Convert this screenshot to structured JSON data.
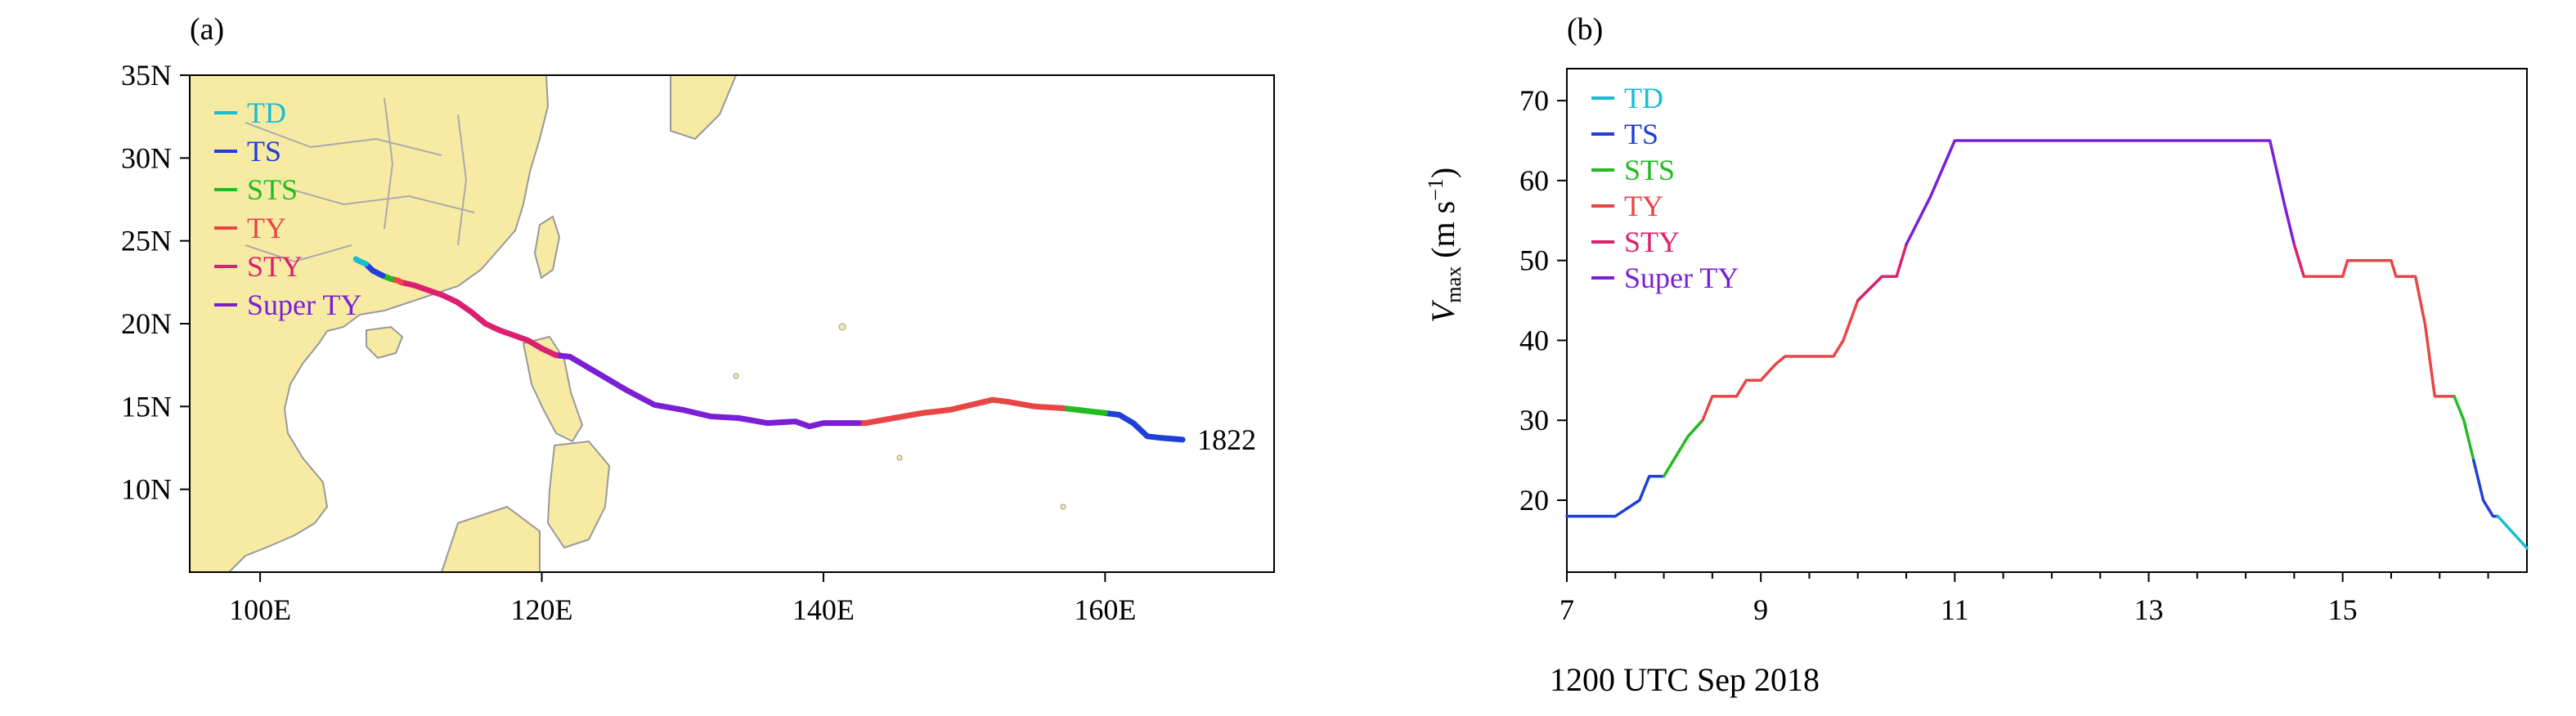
{
  "colors": {
    "TD": "#17becf",
    "TS": "#1f3fd6",
    "STS": "#22bb22",
    "TY": "#e84545",
    "STY": "#dc1f6e",
    "SuperTY": "#7a1fd6",
    "land": "#f7eba4",
    "coast": "#999999"
  },
  "chart_data": [
    {
      "type": "line",
      "panel_label": "(a)",
      "xlim": [
        95,
        172
      ],
      "ylim": [
        5,
        35
      ],
      "xticks": [
        100,
        120,
        140,
        160
      ],
      "xtick_labels": [
        "100E",
        "120E",
        "140E",
        "160E"
      ],
      "yticks": [
        10,
        15,
        20,
        25,
        30,
        35
      ],
      "ytick_labels": [
        "10N",
        "15N",
        "20N",
        "25N",
        "30N",
        "35N"
      ],
      "legend": [
        "TD",
        "TS",
        "STS",
        "TY",
        "STY",
        "Super TY"
      ],
      "legend_position": "top-left",
      "annotation": "1822",
      "series": [
        {
          "name": "TS",
          "x": [
            165.5,
            164.0,
            163.0,
            162.0,
            161.0,
            160.0
          ],
          "y": [
            13.0,
            13.1,
            13.2,
            14.0,
            14.5,
            14.6
          ]
        },
        {
          "name": "STS",
          "x": [
            160.0,
            159.0,
            158.0,
            157.0
          ],
          "y": [
            14.6,
            14.7,
            14.8,
            14.9
          ]
        },
        {
          "name": "TY",
          "x": [
            157.0,
            155.0,
            153.0,
            152.0,
            151.0,
            150.0,
            149.0,
            147.0,
            145.0,
            143.0,
            142.5
          ],
          "y": [
            14.9,
            15.0,
            15.3,
            15.4,
            15.2,
            15.0,
            14.8,
            14.6,
            14.3,
            14.0,
            14.0
          ]
        },
        {
          "name": "Super TY",
          "x": [
            142.5,
            140.0,
            139.0,
            138.0,
            136.0,
            134.0,
            132.0,
            130.0,
            128.0,
            126.0,
            124.0,
            122.0,
            121.0
          ],
          "y": [
            14.0,
            14.0,
            13.8,
            14.1,
            14.0,
            14.3,
            14.4,
            14.8,
            15.1,
            16.0,
            17.0,
            18.0,
            18.1
          ]
        },
        {
          "name": "STY",
          "x": [
            121.0,
            120.0,
            119.0,
            118.0,
            117.0,
            116.0,
            115.0,
            114.0,
            113.0,
            112.0,
            111.0,
            110.0
          ],
          "y": [
            18.1,
            18.5,
            19.0,
            19.3,
            19.6,
            20.0,
            20.7,
            21.3,
            21.7,
            22.0,
            22.3,
            22.5
          ]
        },
        {
          "name": "TY",
          "x": [
            110.0,
            109.8,
            109.3
          ],
          "y": [
            22.5,
            22.6,
            22.7
          ]
        },
        {
          "name": "STS",
          "x": [
            109.3,
            109.0,
            108.7
          ],
          "y": [
            22.7,
            22.8,
            22.9
          ]
        },
        {
          "name": "TS",
          "x": [
            108.7,
            108.0,
            107.5
          ],
          "y": [
            22.9,
            23.2,
            23.6
          ]
        },
        {
          "name": "TD",
          "x": [
            107.5,
            107.0,
            106.8
          ],
          "y": [
            23.6,
            23.8,
            23.9
          ]
        }
      ]
    },
    {
      "type": "line",
      "panel_label": "(b)",
      "xlabel": "1200 UTC Sep 2018",
      "ylabel_main": "V",
      "ylabel_sub": "max",
      "ylabel_units": "(m s",
      "ylabel_exp": "−1",
      "ylabel_close": ")",
      "xlim": [
        7,
        16.9
      ],
      "ylim": [
        11,
        74
      ],
      "xticks": [
        7,
        9,
        11,
        13,
        15
      ],
      "xtick_labels": [
        "7",
        "9",
        "11",
        "13",
        "15"
      ],
      "xminor_step": 0.5,
      "yticks": [
        20,
        30,
        40,
        50,
        60,
        70
      ],
      "ytick_labels": [
        "20",
        "30",
        "40",
        "50",
        "60",
        "70"
      ],
      "legend": [
        "TD",
        "TS",
        "STS",
        "TY",
        "STY",
        "Super TY"
      ],
      "legend_position": "top-left",
      "series": [
        {
          "name": "TS",
          "x": [
            7.0,
            7.25,
            7.5,
            7.75,
            7.85,
            8.0
          ],
          "y": [
            18,
            18,
            18,
            20,
            23,
            23
          ]
        },
        {
          "name": "STS",
          "x": [
            8.0,
            8.25,
            8.4
          ],
          "y": [
            23,
            28,
            30
          ]
        },
        {
          "name": "TY",
          "x": [
            8.4,
            8.5,
            8.75,
            8.85,
            9.0,
            9.15,
            9.25,
            9.5,
            9.75,
            9.85,
            10.0
          ],
          "y": [
            30,
            33,
            33,
            35,
            35,
            37,
            38,
            38,
            38,
            40,
            45
          ]
        },
        {
          "name": "STY",
          "x": [
            10.0,
            10.25,
            10.4,
            10.5
          ],
          "y": [
            45,
            48,
            48,
            52
          ]
        },
        {
          "name": "Super TY",
          "x": [
            10.5,
            10.75,
            11.0,
            11.25,
            11.5,
            11.75,
            12.0,
            12.25,
            12.5,
            12.75,
            13.0,
            13.25,
            13.5,
            13.75,
            14.0,
            14.25,
            14.4,
            14.5
          ],
          "y": [
            52,
            58,
            65,
            65,
            65,
            65,
            65,
            65,
            65,
            65,
            65,
            65,
            65,
            65,
            65,
            65,
            57,
            52
          ]
        },
        {
          "name": "STY",
          "x": [
            14.5,
            14.6
          ],
          "y": [
            52,
            48
          ]
        },
        {
          "name": "TY",
          "x": [
            14.6,
            14.75,
            15.0,
            15.05,
            15.25,
            15.5,
            15.55,
            15.75,
            15.85,
            15.95,
            16.05,
            16.15
          ],
          "y": [
            48,
            48,
            48,
            50,
            50,
            50,
            48,
            48,
            42,
            33,
            33,
            33
          ]
        },
        {
          "name": "STS",
          "x": [
            16.15,
            16.25,
            16.35
          ],
          "y": [
            33,
            30,
            25
          ]
        },
        {
          "name": "TS",
          "x": [
            16.35,
            16.45,
            16.55,
            16.6
          ],
          "y": [
            25,
            20,
            18,
            18
          ]
        },
        {
          "name": "TD",
          "x": [
            16.6,
            16.75,
            16.9
          ],
          "y": [
            18,
            16,
            14
          ]
        }
      ]
    }
  ]
}
